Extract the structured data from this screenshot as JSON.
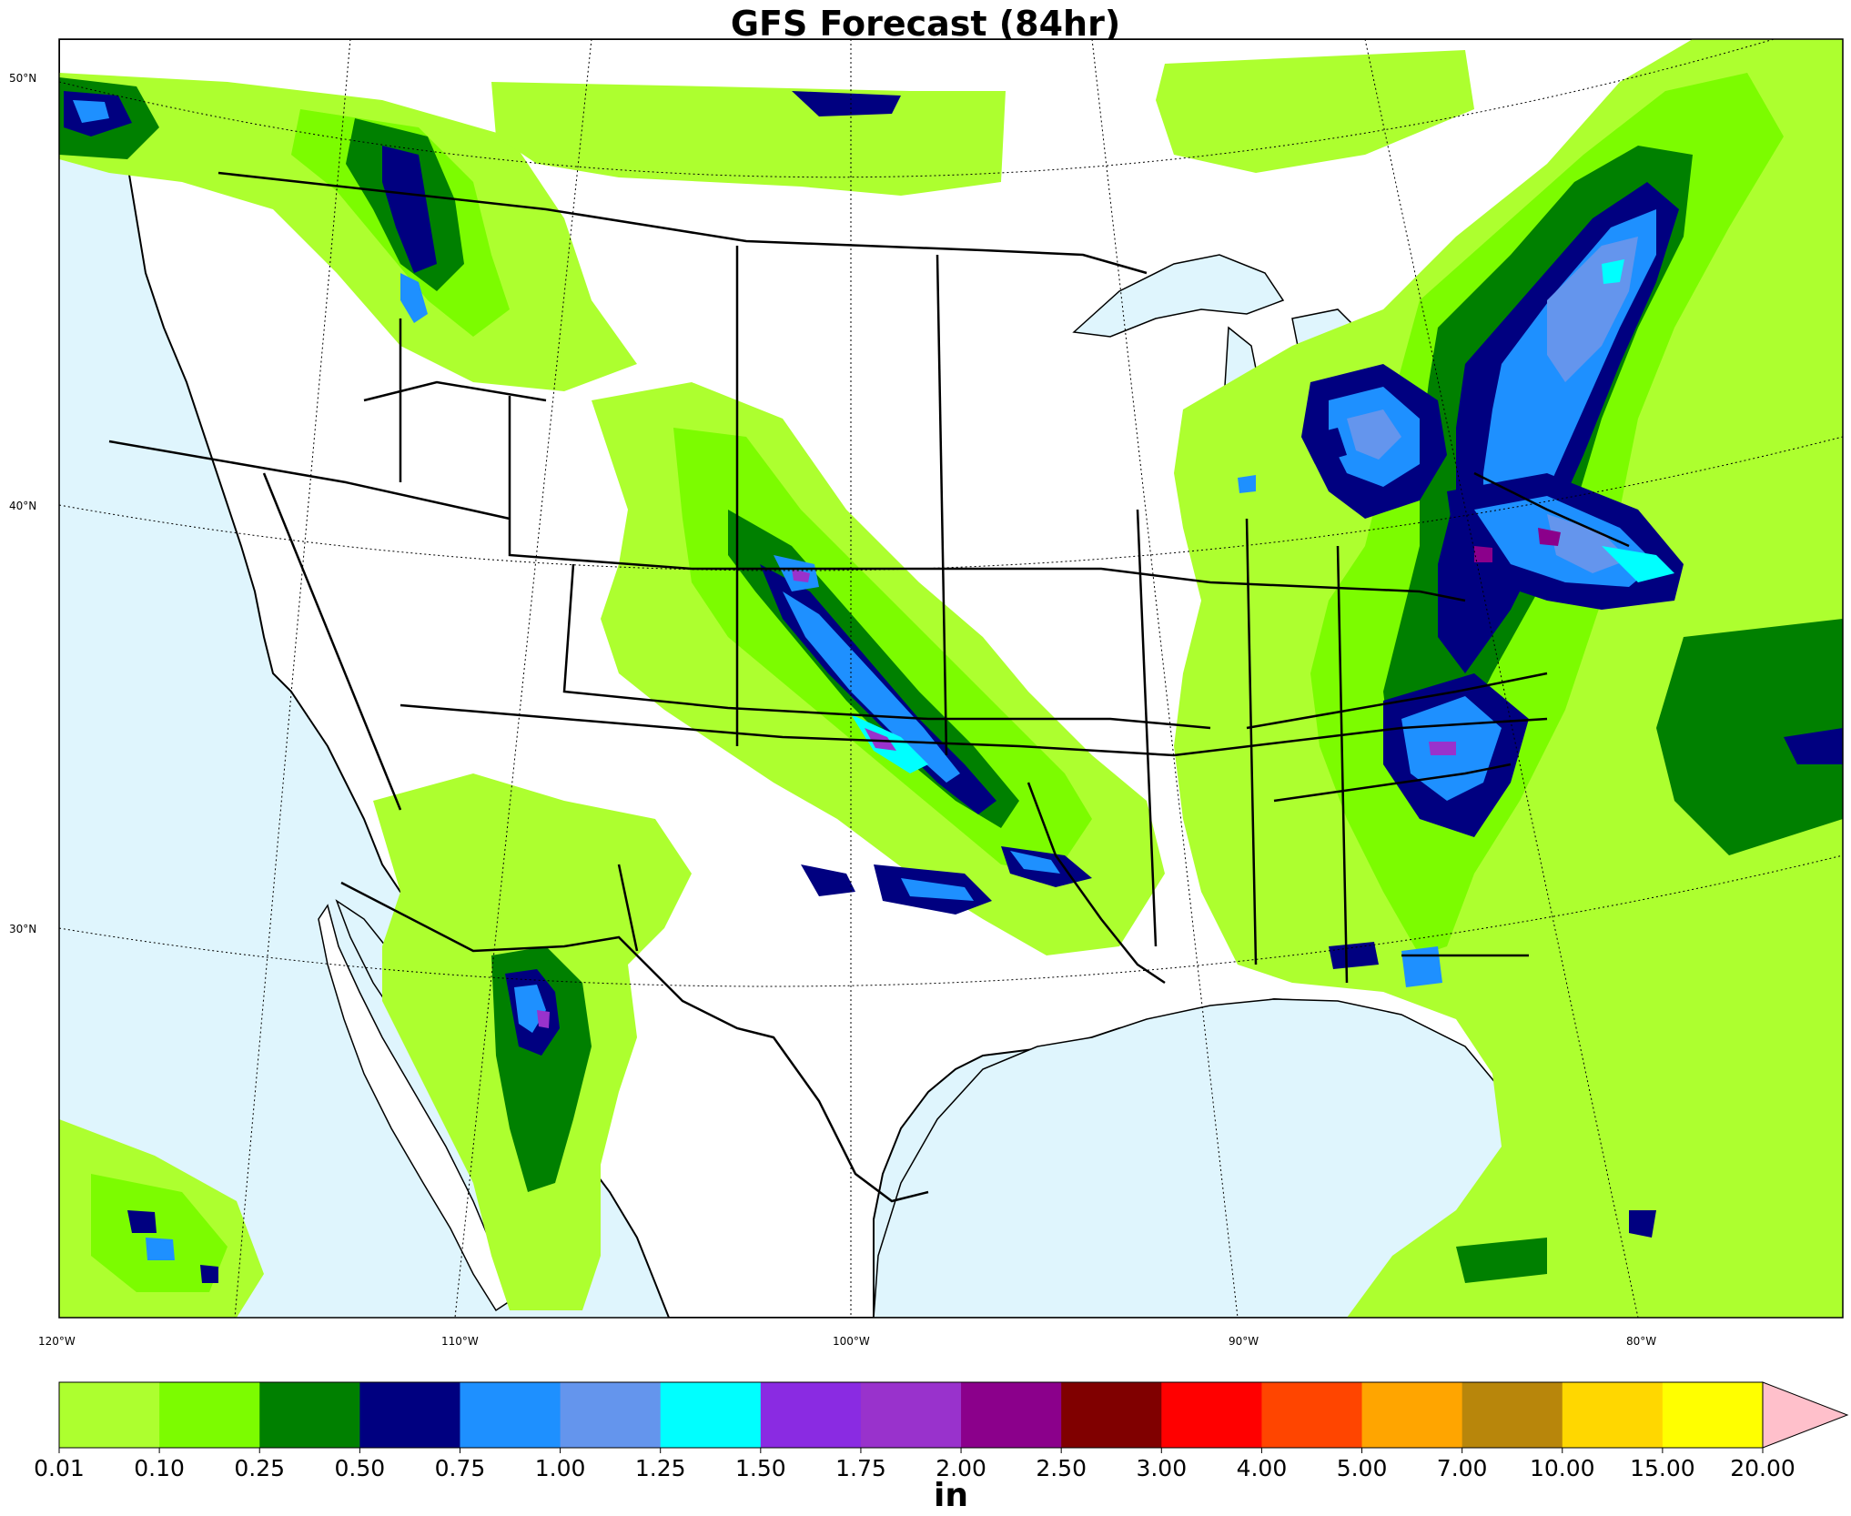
{
  "title": "GFS Forecast (84hr)",
  "latitude_labels": [
    "50°N",
    "40°N",
    "30°N"
  ],
  "longitude_labels": [
    "120°W",
    "110°W",
    "100°W",
    "90°W",
    "80°W"
  ],
  "colorbar": {
    "units": "in",
    "ticks": [
      "0.01",
      "0.10",
      "0.25",
      "0.50",
      "0.75",
      "1.00",
      "1.25",
      "1.50",
      "1.75",
      "2.00",
      "2.50",
      "3.00",
      "4.00",
      "5.00",
      "7.00",
      "10.00",
      "15.00",
      "20.00"
    ],
    "colors": [
      "#adff2f",
      "#7cfc00",
      "#008000",
      "#000080",
      "#1e90ff",
      "#6495ed",
      "#00ffff",
      "#8a2be2",
      "#9932cc",
      "#8b008b",
      "#800000",
      "#ff0000",
      "#ff4500",
      "#ffa500",
      "#b8860b",
      "#ffd700",
      "#ffff00"
    ],
    "extend_color": "#ffc0cb"
  },
  "colors": {
    "water": "#dff5fd",
    "land": "#ffffff"
  }
}
